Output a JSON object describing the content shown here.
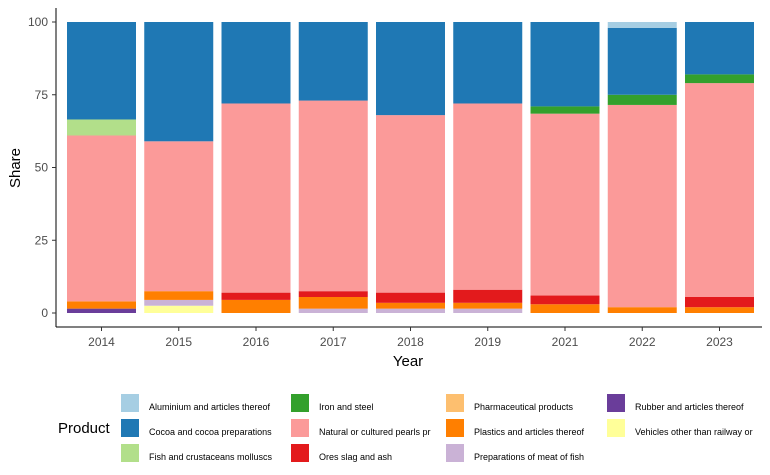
{
  "chart_data": {
    "type": "bar",
    "stacked": true,
    "xlabel": "Year",
    "ylabel": "Share",
    "ylim": [
      0,
      100
    ],
    "yticks": [
      0,
      25,
      50,
      75,
      100
    ],
    "grid": false,
    "legend_title": "Product",
    "legend_position": "bottom",
    "categories": [
      "2014",
      "2015",
      "2016",
      "2017",
      "2018",
      "2019",
      "2021",
      "2022",
      "2023"
    ],
    "series": [
      {
        "name": "Rubber and articles thereof",
        "color": "#6a3d9a",
        "values": [
          1.5,
          0,
          0,
          0,
          0,
          0,
          0,
          0,
          0
        ]
      },
      {
        "name": "Vehicles other than railway or",
        "color": "#ffff99",
        "values": [
          0,
          2.5,
          0,
          0,
          0,
          0,
          0,
          0,
          0
        ]
      },
      {
        "name": "Preparations of meat  of fish",
        "color": "#cab2d6",
        "values": [
          0,
          2.0,
          0,
          1.5,
          1.5,
          1.5,
          0,
          0,
          0
        ]
      },
      {
        "name": "Pharmaceutical products",
        "color": "#fdbf6f",
        "values": [
          0,
          0,
          0,
          0,
          0,
          0,
          0,
          0,
          0
        ]
      },
      {
        "name": "Plastics and articles thereof",
        "color": "#ff7f00",
        "values": [
          2.5,
          3.0,
          4.5,
          4.0,
          2.0,
          2.0,
          3.0,
          2.0,
          2.0
        ]
      },
      {
        "name": "Ores  slag and ash",
        "color": "#e31a1c",
        "values": [
          0,
          0,
          2.5,
          2.0,
          3.5,
          4.5,
          3.0,
          0,
          3.5
        ]
      },
      {
        "name": "Natural or cultured pearls  pr",
        "color": "#fb9a99",
        "values": [
          57,
          51.5,
          65,
          65.5,
          61,
          64,
          62.5,
          69.5,
          73.5
        ]
      },
      {
        "name": "Iron and steel",
        "color": "#33a02c",
        "values": [
          0,
          0,
          0,
          0,
          0,
          0,
          2.5,
          3.5,
          3.0
        ]
      },
      {
        "name": "Fish and crustaceans  molluscs",
        "color": "#b2df8a",
        "values": [
          5.5,
          0,
          0,
          0,
          0,
          0,
          0,
          0,
          0
        ]
      },
      {
        "name": "Cocoa and cocoa preparations",
        "color": "#1f78b4",
        "values": [
          33.5,
          41,
          28,
          27,
          32,
          28,
          29,
          23,
          18
        ]
      },
      {
        "name": "Aluminium and articles thereof",
        "color": "#a6cee3",
        "values": [
          0,
          0,
          0,
          0,
          0,
          0,
          0,
          2,
          0
        ]
      }
    ],
    "legend_order": [
      "Aluminium and articles thereof",
      "Cocoa and cocoa preparations",
      "Fish and crustaceans  molluscs",
      "Iron and steel",
      "Natural or cultured pearls  pr",
      "Ores  slag and ash",
      "Pharmaceutical products",
      "Plastics and articles thereof",
      "Preparations of meat  of fish",
      "Rubber and articles thereof",
      "Vehicles other than railway or"
    ]
  }
}
